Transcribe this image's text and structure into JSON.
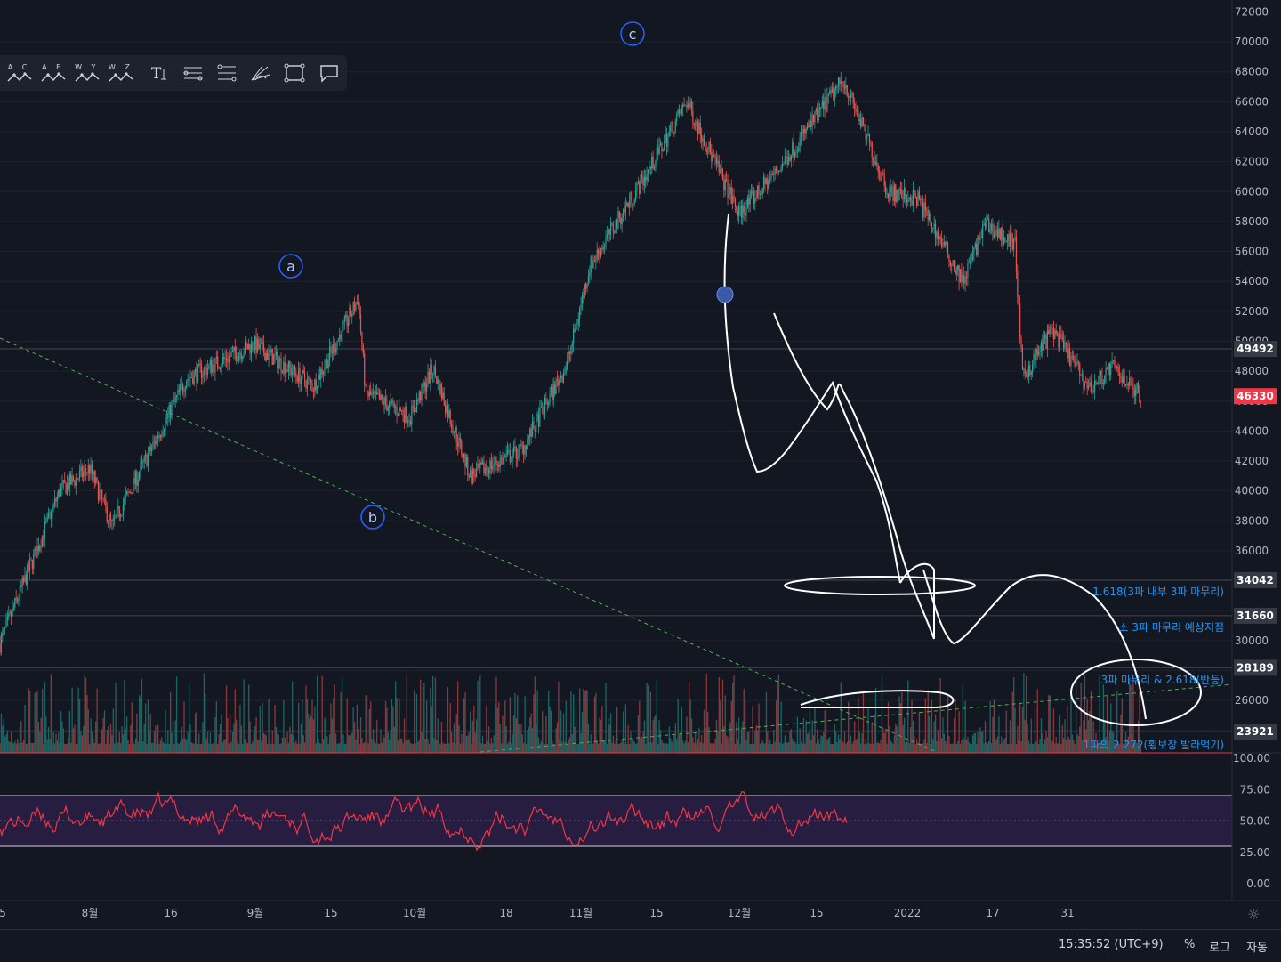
{
  "price_axis_ticks": [
    "72000",
    "70000",
    "68000",
    "66000",
    "64000",
    "62000",
    "60000",
    "58000",
    "56000",
    "54000",
    "52000",
    "50000",
    "48000",
    "46000",
    "44000",
    "42000",
    "40000",
    "38000",
    "36000",
    "30000",
    "26000"
  ],
  "price_labels": [
    {
      "value": "49492",
      "color": "#363a45"
    },
    {
      "value": "46330",
      "color": "#f23645"
    },
    {
      "value": "34042",
      "color": "#363a45"
    },
    {
      "value": "31660",
      "color": "#363a45"
    },
    {
      "value": "28189",
      "color": "#363a45"
    },
    {
      "value": "23921",
      "color": "#363a45"
    }
  ],
  "rsi_ticks": [
    "100.00",
    "75.00",
    "50.00",
    "25.00",
    "0.00"
  ],
  "time_axis": [
    "5",
    "8월",
    "16",
    "9월",
    "15",
    "10월",
    "18",
    "11월",
    "15",
    "12월",
    "15",
    "2022",
    "17",
    "31"
  ],
  "wave_labels": [
    "a",
    "b",
    "c"
  ],
  "annotations": [
    "1.618(3파 내부 3파 마무리)",
    "소 3파 마무리 예상지점",
    "3파 마무리 & 2.618(반등)",
    "1파의 2.272(횡보장 발라먹기)"
  ],
  "toolbar": {
    "tools": [
      {
        "letters": "A C",
        "icon": "elliott-corrective-abc-icon"
      },
      {
        "letters": "A E",
        "icon": "elliott-triangle-abcde-icon"
      },
      {
        "letters": "W Y",
        "icon": "elliott-double-combo-icon"
      },
      {
        "letters": "W Z",
        "icon": "elliott-triple-combo-icon"
      },
      {
        "letters": "",
        "icon": "text-tool-icon"
      },
      {
        "letters": "",
        "icon": "parallel-channel-icon"
      },
      {
        "letters": "",
        "icon": "fib-retracement-icon"
      },
      {
        "letters": "",
        "icon": "pitchfork-icon"
      },
      {
        "letters": "",
        "icon": "rectangle-icon"
      },
      {
        "letters": "",
        "icon": "comment-icon"
      }
    ]
  },
  "bottom_bar": {
    "clock": "15:35:52 (UTC+9)",
    "percent": "%",
    "log": "로그",
    "auto": "자동"
  },
  "colors": {
    "background": "#131722",
    "up": "#26a69a",
    "down": "#ef5350",
    "rsi": "#f23645",
    "annotation": "#2196f3",
    "wave_label": "#2962ff"
  },
  "chart_data": {
    "type": "candlestick",
    "price_ylim": [
      22500,
      72800
    ],
    "last_price": 46330,
    "levels": [
      49492,
      34042,
      31660,
      28189,
      23921
    ],
    "path_points": [
      {
        "date": "2021-07-20",
        "price": 29800
      },
      {
        "date": "2021-07-28",
        "price": 40000
      },
      {
        "date": "2021-08-01",
        "price": 41500
      },
      {
        "date": "2021-08-04",
        "price": 37600
      },
      {
        "date": "2021-08-14",
        "price": 47500
      },
      {
        "date": "2021-08-23",
        "price": 49800
      },
      {
        "date": "2021-08-31",
        "price": 47000
      },
      {
        "date": "2021-09-06",
        "price": 52800
      },
      {
        "date": "2021-09-07",
        "price": 46500
      },
      {
        "date": "2021-09-13",
        "price": 45000
      },
      {
        "date": "2021-09-16",
        "price": 48200
      },
      {
        "date": "2021-09-21",
        "price": 41000
      },
      {
        "date": "2021-09-28",
        "price": 42800
      },
      {
        "date": "2021-10-04",
        "price": 48500
      },
      {
        "date": "2021-10-07",
        "price": 55000
      },
      {
        "date": "2021-10-15",
        "price": 61500
      },
      {
        "date": "2021-10-20",
        "price": 66000
      },
      {
        "date": "2021-10-27",
        "price": 58500
      },
      {
        "date": "2021-11-01",
        "price": 61300
      },
      {
        "date": "2021-11-10",
        "price": 67500
      },
      {
        "date": "2021-11-16",
        "price": 60000
      },
      {
        "date": "2021-11-20",
        "price": 59500
      },
      {
        "date": "2021-11-26",
        "price": 54000
      },
      {
        "date": "2021-11-29",
        "price": 57800
      },
      {
        "date": "2021-12-03",
        "price": 56500
      },
      {
        "date": "2021-12-04",
        "price": 47500
      },
      {
        "date": "2021-12-08",
        "price": 50800
      },
      {
        "date": "2021-12-13",
        "price": 46800
      },
      {
        "date": "2021-12-16",
        "price": 48300
      },
      {
        "date": "2021-12-20",
        "price": 46330
      }
    ],
    "rsi_levels": [
      70,
      50,
      30
    ]
  }
}
